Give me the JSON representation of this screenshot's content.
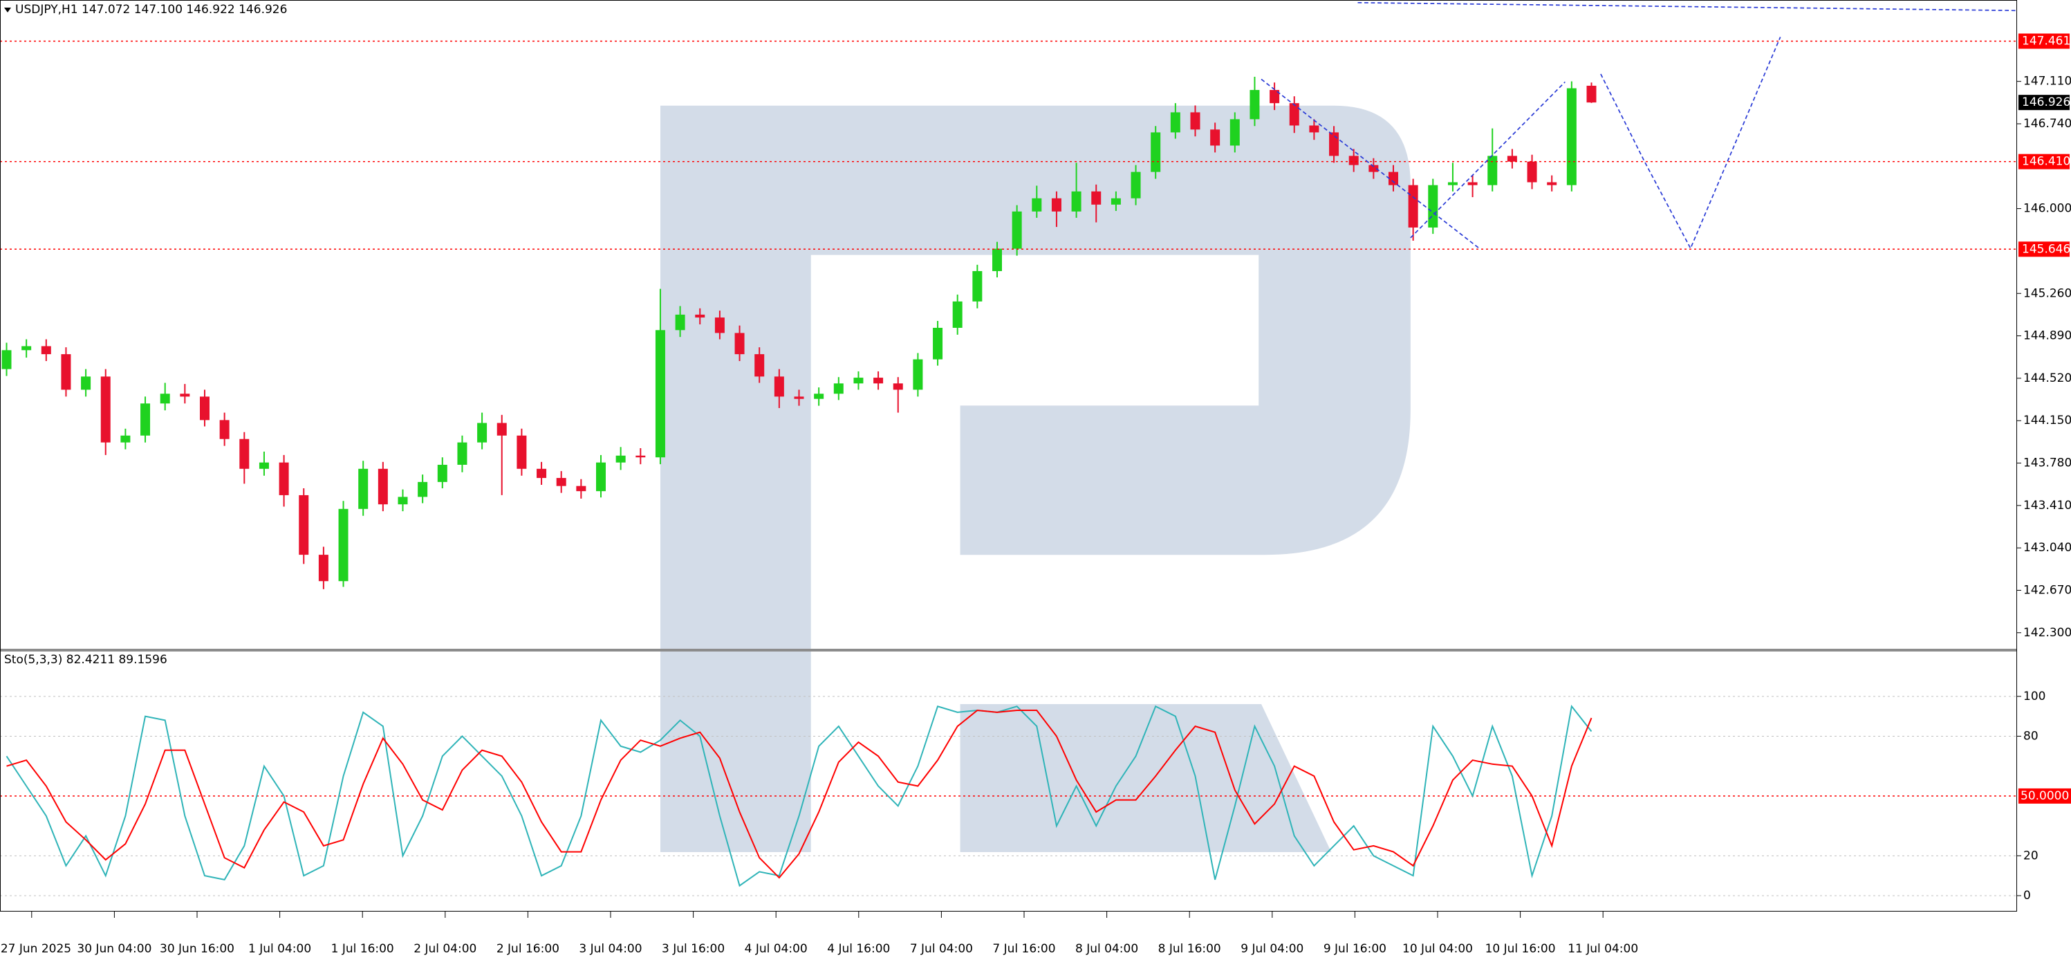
{
  "chart_data": [
    {
      "type": "candlestick",
      "title": "USDJPY,H1  147.072 147.100 146.922 146.926",
      "up_color": "#1fd21f",
      "down_color": "#e8112d",
      "ylim": [
        142.16,
        147.82
      ],
      "yticks": [
        {
          "value": 147.11,
          "label": "147.110"
        },
        {
          "value": 146.74,
          "label": "146.740"
        },
        {
          "value": 146.0,
          "label": "146.000"
        },
        {
          "value": 145.26,
          "label": "145.260"
        },
        {
          "value": 144.89,
          "label": "144.890"
        },
        {
          "value": 144.52,
          "label": "144.520"
        },
        {
          "value": 144.15,
          "label": "144.150"
        },
        {
          "value": 143.78,
          "label": "143.780"
        },
        {
          "value": 143.41,
          "label": "143.410"
        },
        {
          "value": 143.04,
          "label": "143.040"
        },
        {
          "value": 142.67,
          "label": "142.670"
        },
        {
          "value": 142.3,
          "label": "142.300"
        }
      ],
      "levels": [
        147.461,
        {
          "value": 146.41,
          "label": "146.410"
        },
        145.646
      ],
      "level_color": "#ff0000",
      "last_price": 146.926,
      "open": [
        144.6,
        144.765,
        144.8,
        144.73,
        144.42,
        144.535,
        143.96,
        144.02,
        144.3,
        144.385,
        144.36,
        144.155,
        143.99,
        143.73,
        143.785,
        143.5,
        142.98,
        142.75,
        143.38,
        143.73,
        143.42,
        143.485,
        143.615,
        143.765,
        143.96,
        144.13,
        144.02,
        143.73,
        143.65,
        143.58,
        143.535,
        143.785,
        143.845,
        143.83,
        144.94,
        145.075,
        145.05,
        144.915,
        144.73,
        144.535,
        144.36,
        144.34,
        144.385,
        144.475,
        144.525,
        144.475,
        144.42,
        144.685,
        144.96,
        145.19,
        145.455,
        145.65,
        145.975,
        146.09,
        145.975,
        146.15,
        146.035,
        146.09,
        146.32,
        146.665,
        146.84,
        146.69,
        146.55,
        146.78,
        147.035,
        146.92,
        146.725,
        146.665,
        146.46,
        146.38,
        146.32,
        146.205,
        145.835,
        146.205,
        146.23,
        146.205,
        146.46,
        146.41,
        146.23,
        146.205,
        147.072
      ],
      "high": [
        144.83,
        144.86,
        144.86,
        144.79,
        144.6,
        144.6,
        144.08,
        144.36,
        144.48,
        144.47,
        144.42,
        144.22,
        144.05,
        143.88,
        143.85,
        143.56,
        143.05,
        143.45,
        143.8,
        143.79,
        143.55,
        143.68,
        143.83,
        144.02,
        144.22,
        144.2,
        144.08,
        143.79,
        143.71,
        143.64,
        143.85,
        143.92,
        143.91,
        145.3,
        145.15,
        145.13,
        145.11,
        144.98,
        144.79,
        144.6,
        144.42,
        144.44,
        144.53,
        144.58,
        144.58,
        144.53,
        144.74,
        145.02,
        145.25,
        145.51,
        145.71,
        146.03,
        146.2,
        146.15,
        146.4,
        146.21,
        146.15,
        146.38,
        146.72,
        146.92,
        146.9,
        146.75,
        146.84,
        147.15,
        147.1,
        146.98,
        146.78,
        146.72,
        146.52,
        146.44,
        146.38,
        146.26,
        146.26,
        146.4,
        146.29,
        146.7,
        146.52,
        146.47,
        146.29,
        147.11,
        147.1
      ],
      "low": [
        144.54,
        144.7,
        144.67,
        144.36,
        144.36,
        143.85,
        143.9,
        143.96,
        144.24,
        144.3,
        144.1,
        143.93,
        143.6,
        143.67,
        143.4,
        142.9,
        142.68,
        142.7,
        143.32,
        143.36,
        143.36,
        143.43,
        143.56,
        143.7,
        143.9,
        143.5,
        143.67,
        143.59,
        143.52,
        143.47,
        143.48,
        143.72,
        143.77,
        143.77,
        144.88,
        144.99,
        144.86,
        144.67,
        144.48,
        144.26,
        144.28,
        144.28,
        144.33,
        144.42,
        144.42,
        144.22,
        144.36,
        144.63,
        144.9,
        145.13,
        145.4,
        145.59,
        145.92,
        145.84,
        145.92,
        145.88,
        145.98,
        146.03,
        146.26,
        146.61,
        146.63,
        146.49,
        146.49,
        146.72,
        146.86,
        146.66,
        146.6,
        146.4,
        146.32,
        146.26,
        146.15,
        145.72,
        145.78,
        146.15,
        146.1,
        146.15,
        146.35,
        146.17,
        146.15,
        146.15,
        146.922
      ],
      "close": [
        144.765,
        144.8,
        144.73,
        144.42,
        144.535,
        143.96,
        144.02,
        144.3,
        144.385,
        144.36,
        144.155,
        143.99,
        143.73,
        143.785,
        143.5,
        142.98,
        142.75,
        143.38,
        143.73,
        143.42,
        143.485,
        143.615,
        143.765,
        143.96,
        144.13,
        144.02,
        143.73,
        143.65,
        143.58,
        143.535,
        143.785,
        143.845,
        143.83,
        144.94,
        145.075,
        145.05,
        144.915,
        144.73,
        144.535,
        144.36,
        144.34,
        144.385,
        144.475,
        144.525,
        144.475,
        144.42,
        144.685,
        144.96,
        145.19,
        145.455,
        145.65,
        145.975,
        146.09,
        145.975,
        146.15,
        146.035,
        146.09,
        146.32,
        146.665,
        146.84,
        146.69,
        146.55,
        146.78,
        147.035,
        146.92,
        146.725,
        146.665,
        146.46,
        146.38,
        146.32,
        146.205,
        145.835,
        146.205,
        146.23,
        146.205,
        146.46,
        146.41,
        146.23,
        146.205,
        147.05,
        146.926
      ]
    },
    {
      "type": "line",
      "title": "Sto(5,3,3) 82.4211 89.1596",
      "ylim": [
        -7.3,
        122.5
      ],
      "yticks": [
        0,
        20,
        80,
        100
      ],
      "grid_color": "#c0c0c0",
      "levels": [
        {
          "value": 50,
          "label": "50.0000"
        }
      ],
      "level_color": "#ff0000",
      "series": [
        {
          "color": "#2fb4b8",
          "values": [
            70,
            55,
            40,
            15,
            30,
            10,
            40,
            90,
            88,
            40,
            10,
            8,
            25,
            65,
            50,
            10,
            15,
            60,
            92,
            85,
            20,
            40,
            70,
            80,
            70,
            60,
            40,
            10,
            15,
            40,
            88,
            75,
            72,
            78,
            88,
            80,
            40,
            5,
            12,
            10,
            40,
            75,
            85,
            70,
            55,
            45,
            65,
            95,
            92,
            93,
            92,
            95,
            85,
            35,
            55,
            35,
            55,
            70,
            95,
            90,
            60,
            8,
            45,
            85,
            65,
            30,
            15,
            25,
            35,
            20,
            15,
            10,
            85,
            70,
            50,
            85,
            60,
            10,
            40,
            95,
            82.4211
          ]
        },
        {
          "color": "#ff0000",
          "values": [
            65,
            68,
            55,
            37,
            28,
            18,
            26,
            46,
            73,
            73,
            46,
            19,
            14,
            33,
            47,
            42,
            25,
            28,
            56,
            79,
            66,
            48,
            43,
            63,
            73,
            70,
            57,
            37,
            22,
            22,
            48,
            68,
            78,
            75,
            79,
            82,
            69,
            42,
            19,
            9,
            21,
            42,
            67,
            77,
            70,
            57,
            55,
            68,
            85,
            93,
            92,
            93,
            93,
            80,
            58,
            42,
            48,
            48,
            60,
            73,
            85,
            82,
            53,
            36,
            46,
            65,
            60,
            37,
            23,
            25,
            22,
            15,
            35,
            58,
            68,
            66,
            65,
            50,
            25,
            65,
            89.1596
          ]
        }
      ],
      "time_labels": [
        "27 Jun 2025",
        "30 Jun 04:00",
        "30 Jun 16:00",
        "1 Jul 04:00",
        "1 Jul 16:00",
        "2 Jul 04:00",
        "2 Jul 16:00",
        "3 Jul 04:00",
        "3 Jul 16:00",
        "4 Jul 04:00",
        "4 Jul 16:00",
        "7 Jul 04:00",
        "7 Jul 16:00",
        "8 Jul 04:00",
        "8 Jul 16:00",
        "9 Jul 04:00",
        "9 Jul 16:00",
        "10 Jul 04:00",
        "10 Jul 16:00",
        "11 Jul 04:00"
      ]
    }
  ]
}
